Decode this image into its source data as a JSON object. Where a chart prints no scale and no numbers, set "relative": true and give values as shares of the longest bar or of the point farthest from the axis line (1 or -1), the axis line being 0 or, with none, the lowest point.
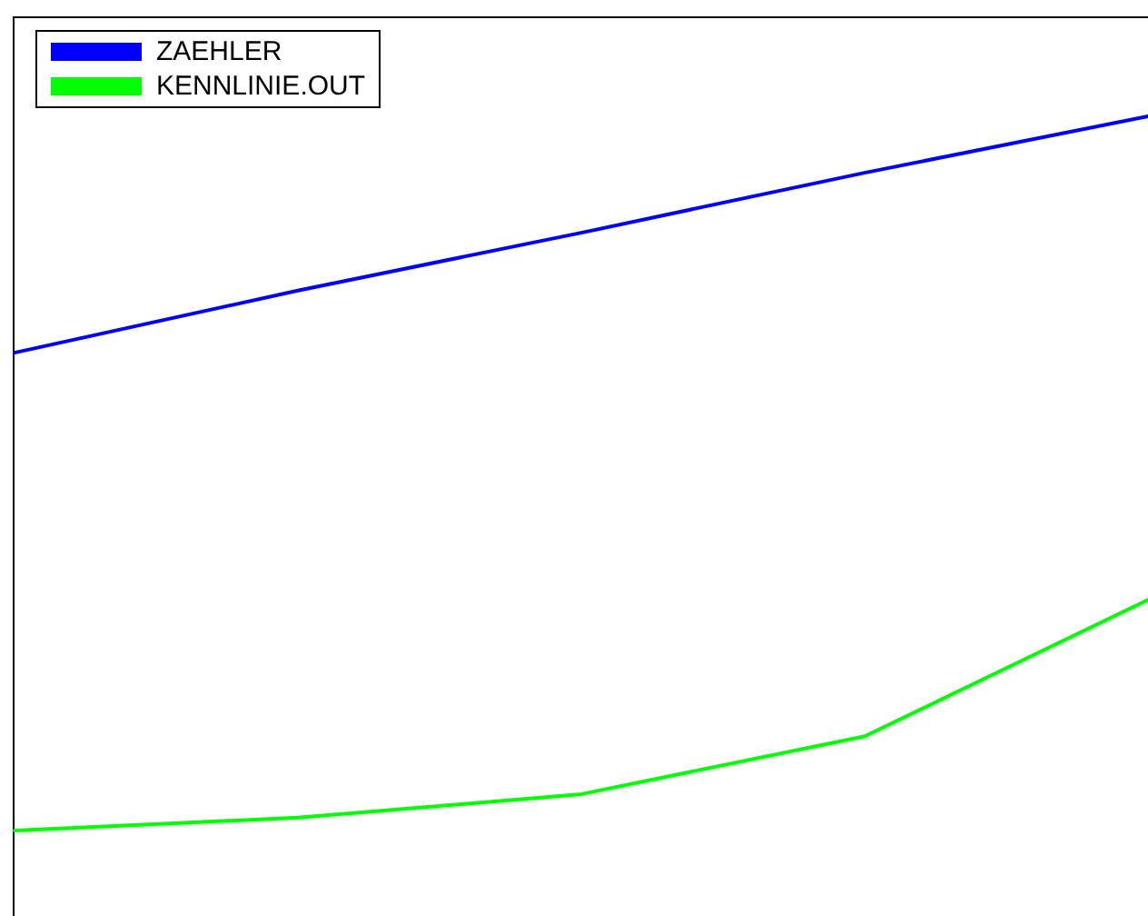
{
  "chart_data": {
    "type": "line",
    "relative": true,
    "categories": [
      null,
      null,
      null,
      null,
      null
    ],
    "legend": "top left",
    "marker": "none",
    "line_style": "solid",
    "grid": false,
    "series": [
      {
        "name": "ZAEHLER",
        "color": "#0000ff",
        "values": [
          0.669,
          0.756,
          0.837,
          0.921,
          1
        ]
      },
      {
        "name": "KENNLINIE.OUT",
        "color": "#00ff00",
        "values": [
          0,
          0.018,
          0.051,
          0.132,
          0.323
        ]
      }
    ]
  }
}
